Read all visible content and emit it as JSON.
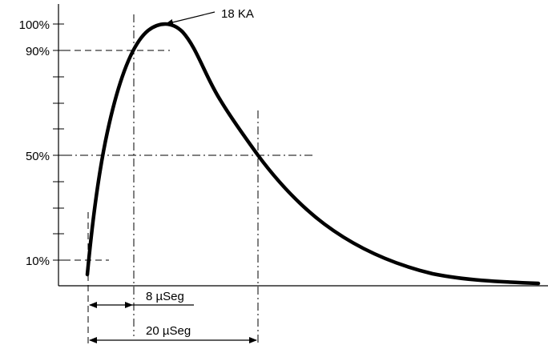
{
  "y_labels": {
    "p100": "100%",
    "p90": "90%",
    "p50": "50%",
    "p10": "10%"
  },
  "peak_label": "18 KA",
  "front_time_label": "8 µSeg",
  "half_time_label": "20 µSeg"
}
